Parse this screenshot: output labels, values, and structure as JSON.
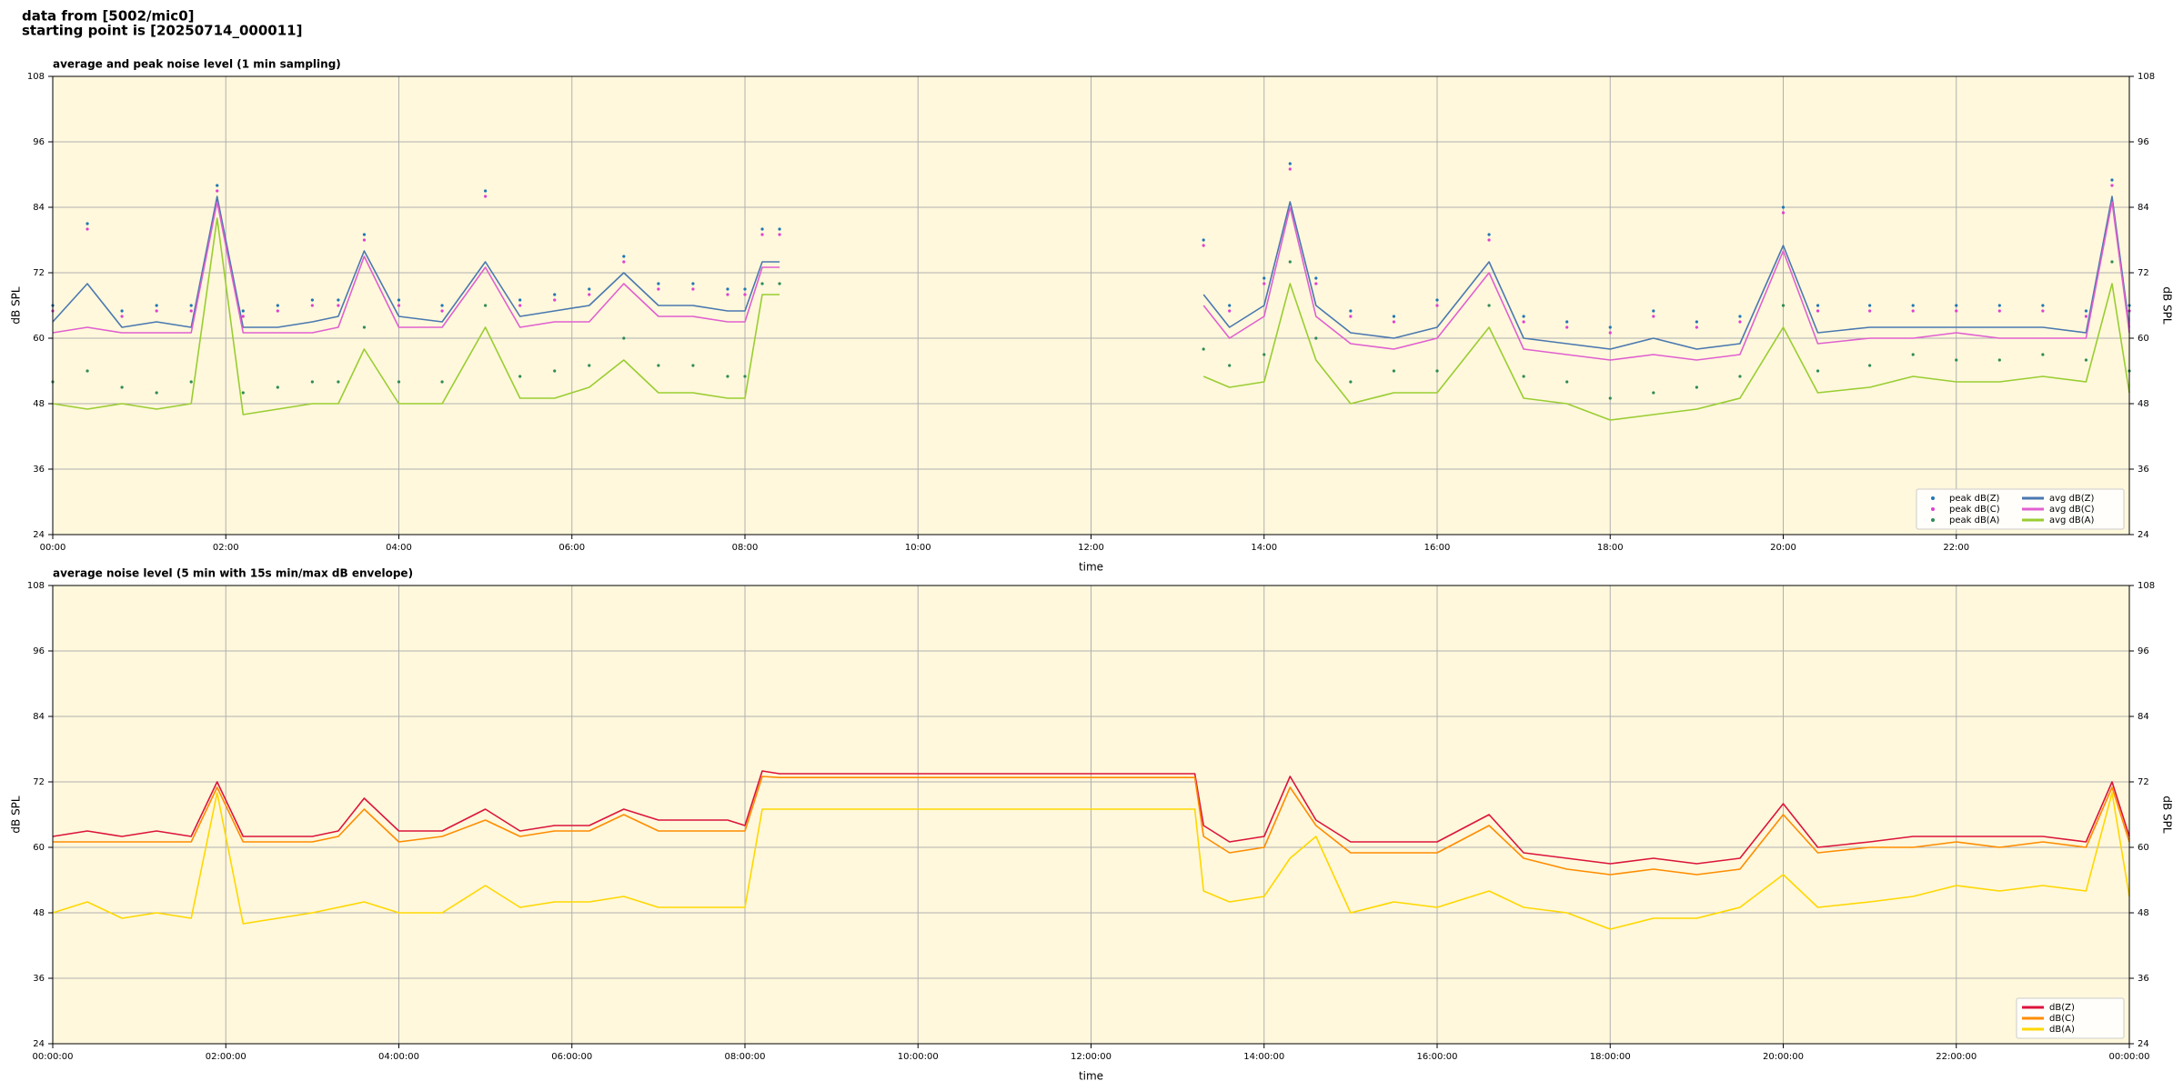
{
  "header": {
    "lines": [
      "data from [5002/mic0]",
      "starting point is [20250714_000011]"
    ]
  },
  "chart_data": [
    {
      "type": "line",
      "title": "average and peak noise level (1 min sampling)",
      "x_label": "time",
      "y_label": "dB SPL",
      "background": "#fff8dc",
      "grid": true,
      "legend": "lower right",
      "legend_columns": 2,
      "xlim": [
        0,
        24
      ],
      "ylim": [
        24,
        108
      ],
      "xticks": [
        {
          "value": 0,
          "label": "00:00"
        },
        {
          "value": 2,
          "label": "02:00"
        },
        {
          "value": 4,
          "label": "04:00"
        },
        {
          "value": 6,
          "label": "06:00"
        },
        {
          "value": 8,
          "label": "08:00"
        },
        {
          "value": 10,
          "label": "10:00"
        },
        {
          "value": 12,
          "label": "12:00"
        },
        {
          "value": 14,
          "label": "14:00"
        },
        {
          "value": 16,
          "label": "16:00"
        },
        {
          "value": 18,
          "label": "18:00"
        },
        {
          "value": 20,
          "label": "20:00"
        },
        {
          "value": 22,
          "label": "22:00"
        }
      ],
      "yticks": [
        24,
        36,
        48,
        60,
        72,
        84,
        96,
        108
      ],
      "x": [
        0,
        0.4,
        0.8,
        1.2,
        1.6,
        1.9,
        2.2,
        2.6,
        3.0,
        3.3,
        3.6,
        4.0,
        4.5,
        5.0,
        5.4,
        5.8,
        6.2,
        6.6,
        7.0,
        7.4,
        7.8,
        8.0,
        8.2,
        8.4,
        8.8,
        13.3,
        13.6,
        14.0,
        14.3,
        14.6,
        15.0,
        15.5,
        16.0,
        16.6,
        17.0,
        17.5,
        18.0,
        18.5,
        19.0,
        19.5,
        20.0,
        20.4,
        21.0,
        21.5,
        22.0,
        22.5,
        23.0,
        23.5,
        23.8,
        24.0
      ],
      "series": [
        {
          "name": "peak dB(Z)",
          "style": "dots",
          "color": "#1f77b4",
          "values": [
            66,
            81,
            65,
            66,
            66,
            88,
            65,
            66,
            67,
            67,
            79,
            67,
            66,
            87,
            67,
            68,
            69,
            75,
            70,
            70,
            69,
            69,
            80,
            80,
            null,
            78,
            66,
            71,
            92,
            71,
            65,
            64,
            67,
            79,
            64,
            63,
            62,
            65,
            63,
            64,
            84,
            66,
            66,
            66,
            66,
            66,
            66,
            65,
            89,
            66
          ]
        },
        {
          "name": "peak dB(C)",
          "style": "dots",
          "color": "#e040d0",
          "values": [
            65,
            80,
            64,
            65,
            65,
            87,
            64,
            65,
            66,
            66,
            78,
            66,
            65,
            86,
            66,
            67,
            68,
            74,
            69,
            69,
            68,
            68,
            79,
            79,
            null,
            77,
            65,
            70,
            91,
            70,
            64,
            63,
            66,
            78,
            63,
            62,
            61,
            64,
            62,
            63,
            83,
            65,
            65,
            65,
            65,
            65,
            65,
            64,
            88,
            65
          ]
        },
        {
          "name": "peak dB(A)",
          "style": "dots",
          "color": "#2e8b57",
          "values": [
            52,
            54,
            51,
            50,
            52,
            85,
            50,
            51,
            52,
            52,
            62,
            52,
            52,
            66,
            53,
            54,
            55,
            60,
            55,
            55,
            53,
            53,
            70,
            70,
            null,
            58,
            55,
            57,
            74,
            60,
            52,
            54,
            54,
            66,
            53,
            52,
            49,
            50,
            51,
            53,
            66,
            54,
            55,
            57,
            56,
            56,
            57,
            56,
            74,
            54
          ]
        },
        {
          "name": "avg dB(Z)",
          "style": "line",
          "color": "#4a78b0",
          "values": [
            63,
            70,
            62,
            63,
            62,
            86,
            62,
            62,
            63,
            64,
            76,
            64,
            63,
            74,
            64,
            65,
            66,
            72,
            66,
            66,
            65,
            65,
            74,
            74,
            null,
            68,
            62,
            66,
            85,
            66,
            61,
            60,
            62,
            74,
            60,
            59,
            58,
            60,
            58,
            59,
            77,
            61,
            62,
            62,
            62,
            62,
            62,
            61,
            86,
            62
          ]
        },
        {
          "name": "avg dB(C)",
          "style": "line",
          "color": "#e060d0",
          "values": [
            61,
            62,
            61,
            61,
            61,
            85,
            61,
            61,
            61,
            62,
            75,
            62,
            62,
            73,
            62,
            63,
            63,
            70,
            64,
            64,
            63,
            63,
            73,
            73,
            null,
            66,
            60,
            64,
            84,
            64,
            59,
            58,
            60,
            72,
            58,
            57,
            56,
            57,
            56,
            57,
            76,
            59,
            60,
            60,
            61,
            60,
            60,
            60,
            85,
            61
          ]
        },
        {
          "name": "avg dB(A)",
          "style": "line",
          "color": "#9acd32",
          "values": [
            48,
            47,
            48,
            47,
            48,
            82,
            46,
            47,
            48,
            48,
            58,
            48,
            48,
            62,
            49,
            49,
            51,
            56,
            50,
            50,
            49,
            49,
            68,
            68,
            null,
            53,
            51,
            52,
            70,
            56,
            48,
            50,
            50,
            62,
            49,
            48,
            45,
            46,
            47,
            49,
            62,
            50,
            51,
            53,
            52,
            52,
            53,
            52,
            70,
            50
          ]
        }
      ]
    },
    {
      "type": "line",
      "title": "average noise level (5 min with 15s min/max dB envelope)",
      "x_label": "time",
      "y_label": "dB SPL",
      "background": "#fff8dc",
      "grid": true,
      "legend": "lower right",
      "legend_columns": 1,
      "xlim": [
        0,
        24
      ],
      "ylim": [
        24,
        108
      ],
      "xticks": [
        {
          "value": 0,
          "label": "00:00:00"
        },
        {
          "value": 2,
          "label": "02:00:00"
        },
        {
          "value": 4,
          "label": "04:00:00"
        },
        {
          "value": 6,
          "label": "06:00:00"
        },
        {
          "value": 8,
          "label": "08:00:00"
        },
        {
          "value": 10,
          "label": "10:00:00"
        },
        {
          "value": 12,
          "label": "12:00:00"
        },
        {
          "value": 14,
          "label": "14:00:00"
        },
        {
          "value": 16,
          "label": "16:00:00"
        },
        {
          "value": 18,
          "label": "18:00:00"
        },
        {
          "value": 20,
          "label": "20:00:00"
        },
        {
          "value": 22,
          "label": "22:00:00"
        },
        {
          "value": 24,
          "label": "00:00:00"
        }
      ],
      "yticks": [
        24,
        36,
        48,
        60,
        72,
        84,
        96,
        108
      ],
      "x": [
        0,
        0.4,
        0.8,
        1.2,
        1.6,
        1.9,
        2.2,
        2.6,
        3.0,
        3.3,
        3.6,
        4.0,
        4.5,
        5.0,
        5.4,
        5.8,
        6.2,
        6.6,
        7.0,
        7.4,
        7.8,
        8.0,
        8.2,
        8.4,
        13.2,
        13.3,
        13.6,
        14.0,
        14.3,
        14.6,
        15.0,
        15.5,
        16.0,
        16.6,
        17.0,
        17.5,
        18.0,
        18.5,
        19.0,
        19.5,
        20.0,
        20.4,
        21.0,
        21.5,
        22.0,
        22.5,
        23.0,
        23.5,
        23.8,
        24.0
      ],
      "series": [
        {
          "name": "dB(Z)",
          "style": "line",
          "color": "#dc143c",
          "values": [
            62,
            63,
            62,
            63,
            62,
            72,
            62,
            62,
            62,
            63,
            69,
            63,
            63,
            67,
            63,
            64,
            64,
            67,
            65,
            65,
            65,
            64,
            74,
            73.5,
            73.5,
            64,
            61,
            62,
            73,
            65,
            61,
            61,
            61,
            66,
            59,
            58,
            57,
            58,
            57,
            58,
            68,
            60,
            61,
            62,
            62,
            62,
            62,
            61,
            72,
            62
          ]
        },
        {
          "name": "dB(C)",
          "style": "line",
          "color": "#ff8c00",
          "values": [
            61,
            61,
            61,
            61,
            61,
            71,
            61,
            61,
            61,
            62,
            67,
            61,
            62,
            65,
            62,
            63,
            63,
            66,
            63,
            63,
            63,
            63,
            73,
            72.8,
            72.8,
            62,
            59,
            60,
            71,
            64,
            59,
            59,
            59,
            64,
            58,
            56,
            55,
            56,
            55,
            56,
            66,
            59,
            60,
            60,
            61,
            60,
            61,
            60,
            71,
            61
          ]
        },
        {
          "name": "dB(A)",
          "style": "line",
          "color": "#ffd700",
          "values": [
            48,
            50,
            47,
            48,
            47,
            70,
            46,
            47,
            48,
            49,
            50,
            48,
            48,
            53,
            49,
            50,
            50,
            51,
            49,
            49,
            49,
            49,
            67,
            67,
            67,
            52,
            50,
            51,
            58,
            62,
            48,
            50,
            49,
            52,
            49,
            48,
            45,
            47,
            47,
            49,
            55,
            49,
            50,
            51,
            53,
            52,
            53,
            52,
            70,
            51
          ]
        }
      ]
    }
  ]
}
